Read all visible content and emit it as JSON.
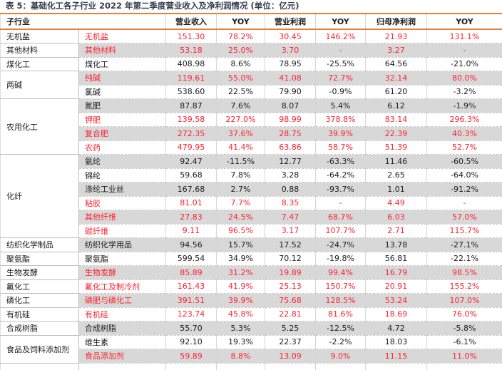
{
  "title": "表 5：基础化工各子行业 2022 年第二季度营业收入及净利润情况 (单位：亿元)",
  "colors": {
    "accent_orange": "#ED7D31",
    "highlight_red": "#FE2230",
    "row_alt_gray": "#D8D8D8",
    "title_ink": "#333F50"
  },
  "table": {
    "group_header": "子行业",
    "columns": [
      "营业收入",
      "YOY",
      "营业利润",
      "YOY",
      "归母净利润",
      "YOY"
    ],
    "groups": [
      {
        "name": "无机盐",
        "rows": [
          {
            "label": "无机盐",
            "red": true,
            "values": [
              "151.30",
              "78.2%",
              "30.45",
              "146.2%",
              "21.93",
              "131.1%"
            ]
          }
        ]
      },
      {
        "name": "其他材料",
        "rows": [
          {
            "label": "其他材料",
            "red": true,
            "values": [
              "53.18",
              "25.0%",
              "3.70",
              "-",
              "3.27",
              "-"
            ]
          }
        ]
      },
      {
        "name": "煤化工",
        "rows": [
          {
            "label": "煤化工",
            "red": false,
            "values": [
              "408.98",
              "8.6%",
              "78.95",
              "-25.5%",
              "64.56",
              "-21.0%"
            ]
          }
        ]
      },
      {
        "name": "两碱",
        "rows": [
          {
            "label": "纯碱",
            "red": true,
            "values": [
              "119.61",
              "55.0%",
              "41.08",
              "72.7%",
              "32.14",
              "80.0%"
            ]
          },
          {
            "label": "氯碱",
            "red": false,
            "values": [
              "538.60",
              "22.5%",
              "79.90",
              "-0.9%",
              "61.20",
              "-3.2%"
            ]
          }
        ]
      },
      {
        "name": "农用化工",
        "rows": [
          {
            "label": "氮肥",
            "red": false,
            "values": [
              "87.87",
              "7.6%",
              "8.07",
              "5.4%",
              "6.12",
              "-1.9%"
            ]
          },
          {
            "label": "钾肥",
            "red": true,
            "values": [
              "139.58",
              "227.0%",
              "98.99",
              "378.8%",
              "83.14",
              "296.3%"
            ]
          },
          {
            "label": "复合肥",
            "red": true,
            "values": [
              "272.35",
              "37.6%",
              "28.75",
              "39.9%",
              "22.39",
              "40.3%"
            ]
          },
          {
            "label": "农药",
            "red": true,
            "values": [
              "479.95",
              "41.4%",
              "63.86",
              "58.7%",
              "51.39",
              "52.7%"
            ]
          }
        ]
      },
      {
        "name": "化纤",
        "rows": [
          {
            "label": "氨纶",
            "red": false,
            "values": [
              "92.47",
              "-11.5%",
              "12.77",
              "-63.3%",
              "11.46",
              "-60.5%"
            ]
          },
          {
            "label": "锦纶",
            "red": false,
            "values": [
              "59.68",
              "7.8%",
              "3.28",
              "-64.2%",
              "2.65",
              "-64.0%"
            ]
          },
          {
            "label": "涤纶工业丝",
            "red": false,
            "values": [
              "167.68",
              "2.7%",
              "0.88",
              "-93.7%",
              "1.01",
              "-91.2%"
            ]
          },
          {
            "label": "粘胶",
            "red": true,
            "values": [
              "81.01",
              "7.7%",
              "8.35",
              "-",
              "4.49",
              "-"
            ]
          },
          {
            "label": "其他纤维",
            "red": true,
            "values": [
              "27.83",
              "24.5%",
              "7.47",
              "68.7%",
              "6.03",
              "57.0%"
            ]
          },
          {
            "label": "碳纤维",
            "red": true,
            "values": [
              "9.11",
              "96.5%",
              "3.17",
              "107.7%",
              "2.71",
              "115.7%"
            ]
          }
        ]
      },
      {
        "name": "纺织化学制品",
        "rows": [
          {
            "label": "纺织化学用品",
            "red": false,
            "values": [
              "94.56",
              "15.7%",
              "17.52",
              "-24.7%",
              "13.78",
              "-27.1%"
            ]
          }
        ]
      },
      {
        "name": "聚氨酯",
        "rows": [
          {
            "label": "聚氨酯",
            "red": false,
            "values": [
              "599.54",
              "34.9%",
              "70.12",
              "-19.8%",
              "56.81",
              "-22.1%"
            ]
          }
        ]
      },
      {
        "name": "生物发酵",
        "rows": [
          {
            "label": "生物发酵",
            "red": true,
            "values": [
              "85.89",
              "31.2%",
              "19.89",
              "99.4%",
              "16.79",
              "98.5%"
            ]
          }
        ]
      },
      {
        "name": "氟化工",
        "rows": [
          {
            "label": "氟化工及制冷剂",
            "red": true,
            "values": [
              "161.43",
              "41.9%",
              "25.13",
              "150.7%",
              "20.91",
              "155.2%"
            ]
          }
        ]
      },
      {
        "name": "磷化工",
        "rows": [
          {
            "label": "磷肥与磷化工",
            "red": true,
            "values": [
              "391.51",
              "39.9%",
              "75.68",
              "128.5%",
              "53.24",
              "107.0%"
            ]
          }
        ]
      },
      {
        "name": "有机硅",
        "rows": [
          {
            "label": "有机硅",
            "red": true,
            "values": [
              "123.74",
              "45.8%",
              "22.81",
              "81.6%",
              "18.69",
              "76.0%"
            ]
          }
        ]
      },
      {
        "name": "合成树脂",
        "rows": [
          {
            "label": "合成树脂",
            "red": false,
            "values": [
              "55.70",
              "5.3%",
              "5.25",
              "-12.5%",
              "4.72",
              "-5.8%"
            ]
          }
        ]
      },
      {
        "name": "食品及饲料添加剂",
        "rows": [
          {
            "label": "维生素",
            "red": false,
            "values": [
              "92.10",
              "19.3%",
              "22.37",
              "-2.2%",
              "18.03",
              "-6.1%"
            ]
          },
          {
            "label": "食品添加剂",
            "red": true,
            "values": [
              "59.89",
              "8.8%",
              "13.09",
              "9.0%",
              "11.15",
              "11.0%"
            ]
          }
        ]
      }
    ]
  }
}
